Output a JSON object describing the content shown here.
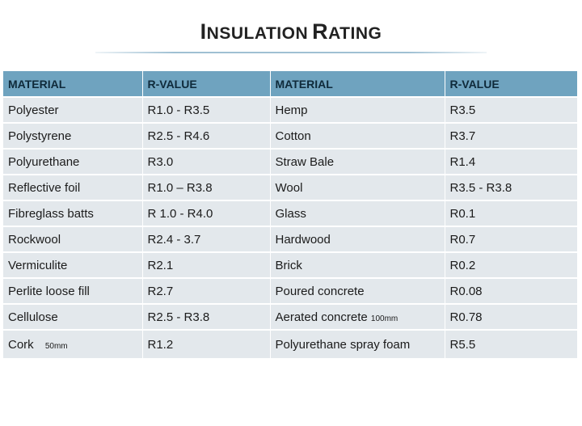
{
  "title": {
    "first_initial": "I",
    "first_rest": "NSULATION",
    "second_initial": "R",
    "second_rest": "ATING"
  },
  "colors": {
    "header_bg": "#6fa3bf",
    "row_bg": "#e3e8ec",
    "header_text": "#0f2a3a"
  },
  "table": {
    "headers": [
      "MATERIAL",
      "R-VALUE",
      "MATERIAL",
      "R-VALUE"
    ],
    "rows": [
      {
        "m1": "Polyester",
        "m1_note": "",
        "r1": "R1.0 - R3.5",
        "m2": "Hemp",
        "m2_note": "",
        "r2": "R3.5"
      },
      {
        "m1": "Polystyrene",
        "m1_note": "",
        "r1": "R2.5 - R4.6",
        "m2": "Cotton",
        "m2_note": "",
        "r2": "R3.7"
      },
      {
        "m1": "Polyurethane",
        "m1_note": "",
        "r1": "R3.0",
        "m2": "Straw Bale",
        "m2_note": "",
        "r2": "R1.4"
      },
      {
        "m1": "Reflective foil",
        "m1_note": "",
        "r1": "R1.0 – R3.8",
        "m2": "Wool",
        "m2_note": "",
        "r2": "R3.5 - R3.8"
      },
      {
        "m1": "Fibreglass batts",
        "m1_note": "",
        "r1": "R 1.0 - R4.0",
        "m2": "Glass",
        "m2_note": "",
        "r2": "R0.1"
      },
      {
        "m1": "Rockwool",
        "m1_note": "",
        "r1": "R2.4  - 3.7",
        "m2": "Hardwood",
        "m2_note": "",
        "r2": "R0.7"
      },
      {
        "m1": "Vermiculite",
        "m1_note": "",
        "r1": "R2.1",
        "m2": "Brick",
        "m2_note": "",
        "r2": "R0.2"
      },
      {
        "m1": "Perlite loose fill",
        "m1_note": "",
        "r1": "R2.7",
        "m2": "Poured concrete",
        "m2_note": "",
        "r2": "R0.08"
      },
      {
        "m1": "Cellulose",
        "m1_note": "",
        "r1": "R2.5 - R3.8",
        "m2": "Aerated concrete",
        "m2_note": "100mm",
        "r2": "R0.78"
      },
      {
        "m1": "Cork",
        "m1_note": "50mm",
        "r1": "R1.2",
        "m2": "Polyurethane spray foam",
        "m2_note": "",
        "r2": "R5.5"
      }
    ]
  }
}
